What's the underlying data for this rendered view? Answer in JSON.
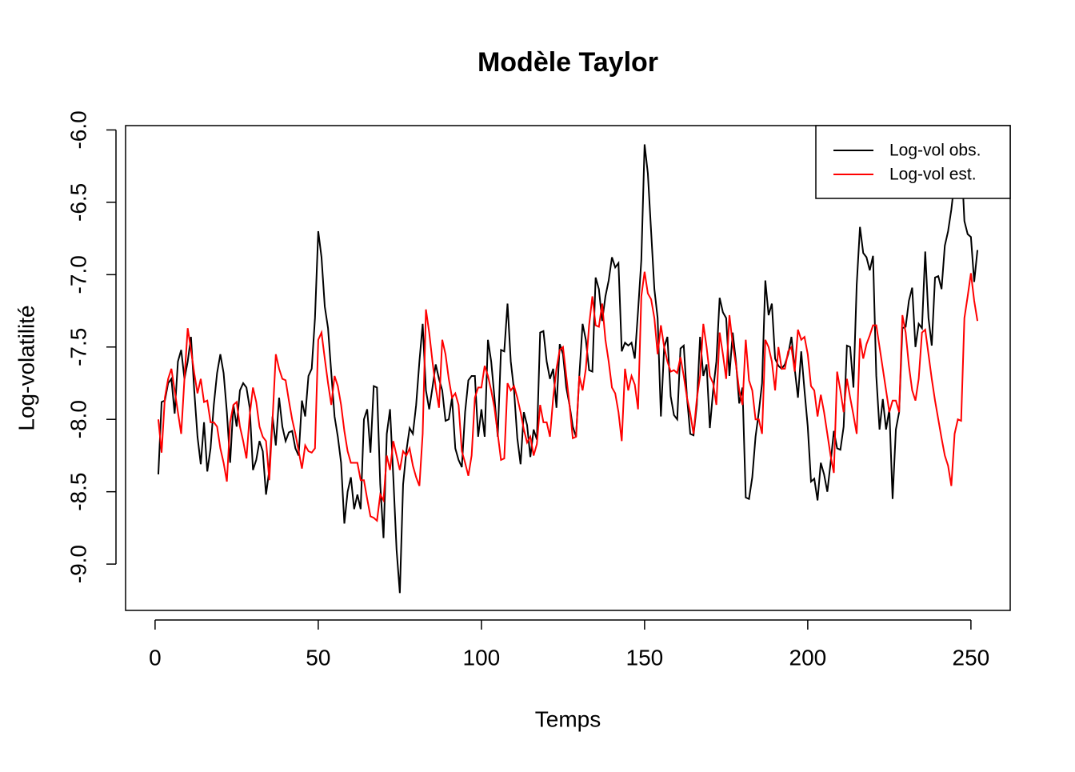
{
  "chart_data": {
    "type": "line",
    "title": "Modèle Taylor",
    "xlabel": "Temps",
    "ylabel": "Log-volatilité",
    "xlim": [
      -9.04,
      262.04
    ],
    "ylim": [
      -9.32,
      -5.97
    ],
    "xticks": [
      0,
      50,
      100,
      150,
      200,
      250
    ],
    "yticks": [
      {
        "value": -9,
        "label": "-9.0"
      },
      {
        "value": -8.5,
        "label": "-8.5"
      },
      {
        "value": -8,
        "label": "-8.0"
      },
      {
        "value": -7.5,
        "label": "-7.5"
      },
      {
        "value": -7,
        "label": "-7.0"
      },
      {
        "value": -6.5,
        "label": "-6.5"
      },
      {
        "value": -6,
        "label": "-6.0"
      }
    ],
    "legend": "topright",
    "grid": false,
    "x": [
      1,
      2,
      3,
      4,
      5,
      6,
      7,
      8,
      9,
      10,
      11,
      12,
      13,
      14,
      15,
      16,
      17,
      18,
      19,
      20,
      21,
      22,
      23,
      24,
      25,
      26,
      27,
      28,
      29,
      30,
      31,
      32,
      33,
      34,
      35,
      36,
      37,
      38,
      39,
      40,
      41,
      42,
      43,
      44,
      45,
      46,
      47,
      48,
      49,
      50,
      51,
      52,
      53,
      54,
      55,
      56,
      57,
      58,
      59,
      60,
      61,
      62,
      63,
      64,
      65,
      66,
      67,
      68,
      69,
      70,
      71,
      72,
      73,
      74,
      75,
      76,
      77,
      78,
      79,
      80,
      81,
      82,
      83,
      84,
      85,
      86,
      87,
      88,
      89,
      90,
      91,
      92,
      93,
      94,
      95,
      96,
      97,
      98,
      99,
      100,
      101,
      102,
      103,
      104,
      105,
      106,
      107,
      108,
      109,
      110,
      111,
      112,
      113,
      114,
      115,
      116,
      117,
      118,
      119,
      120,
      121,
      122,
      123,
      124,
      125,
      126,
      127,
      128,
      129,
      130,
      131,
      132,
      133,
      134,
      135,
      136,
      137,
      138,
      139,
      140,
      141,
      142,
      143,
      144,
      145,
      146,
      147,
      148,
      149,
      150,
      151,
      152,
      153,
      154,
      155,
      156,
      157,
      158,
      159,
      160,
      161,
      162,
      163,
      164,
      165,
      166,
      167,
      168,
      169,
      170,
      171,
      172,
      173,
      174,
      175,
      176,
      177,
      178,
      179,
      180,
      181,
      182,
      183,
      184,
      185,
      186,
      187,
      188,
      189,
      190,
      191,
      192,
      193,
      194,
      195,
      196,
      197,
      198,
      199,
      200,
      201,
      202,
      203,
      204,
      205,
      206,
      207,
      208,
      209,
      210,
      211,
      212,
      213,
      214,
      215,
      216,
      217,
      218,
      219,
      220,
      221,
      222,
      223,
      224,
      225,
      226,
      227,
      228,
      229,
      230,
      231,
      232,
      233,
      234,
      235,
      236,
      237,
      238,
      239,
      240,
      241,
      242,
      243,
      244,
      245,
      246,
      247,
      248,
      249,
      250,
      251,
      252
    ],
    "series": [
      {
        "name": "Log-vol obs.",
        "color": "#000000",
        "values": [
          -8.38,
          -7.88,
          -7.87,
          -7.75,
          -7.72,
          -7.96,
          -7.6,
          -7.52,
          -7.72,
          -7.6,
          -7.43,
          -7.8,
          -8.12,
          -8.31,
          -8.02,
          -8.36,
          -8.2,
          -7.9,
          -7.68,
          -7.55,
          -7.68,
          -7.95,
          -8.3,
          -7.9,
          -8.05,
          -7.8,
          -7.75,
          -7.78,
          -7.92,
          -8.35,
          -8.28,
          -8.15,
          -8.22,
          -8.52,
          -8.35,
          -7.98,
          -8.18,
          -7.85,
          -8.05,
          -8.15,
          -8.09,
          -8.08,
          -8.2,
          -8.25,
          -7.87,
          -7.98,
          -7.7,
          -7.65,
          -7.3,
          -6.7,
          -6.88,
          -7.22,
          -7.37,
          -7.68,
          -7.98,
          -8.12,
          -8.3,
          -8.72,
          -8.5,
          -8.4,
          -8.62,
          -8.52,
          -8.62,
          -8.0,
          -7.93,
          -8.23,
          -7.77,
          -7.78,
          -8.45,
          -8.82,
          -8.1,
          -7.93,
          -8.4,
          -8.9,
          -9.2,
          -8.45,
          -8.22,
          -8.06,
          -8.1,
          -7.9,
          -7.6,
          -7.34,
          -7.8,
          -7.93,
          -7.78,
          -7.62,
          -7.72,
          -7.8,
          -8.01,
          -8.0,
          -7.85,
          -8.2,
          -8.28,
          -8.33,
          -7.95,
          -7.73,
          -7.7,
          -7.7,
          -8.12,
          -7.93,
          -8.12,
          -7.45,
          -7.6,
          -7.85,
          -8.12,
          -7.52,
          -7.53,
          -7.2,
          -7.6,
          -7.8,
          -8.13,
          -8.31,
          -7.95,
          -8.04,
          -8.26,
          -8.07,
          -8.14,
          -7.4,
          -7.39,
          -7.6,
          -7.72,
          -7.65,
          -7.92,
          -7.48,
          -7.55,
          -7.78,
          -7.9,
          -8.05,
          -8.12,
          -7.7,
          -7.34,
          -7.45,
          -7.66,
          -7.67,
          -7.02,
          -7.1,
          -7.32,
          -7.15,
          -7.04,
          -6.88,
          -6.95,
          -6.92,
          -7.53,
          -7.47,
          -7.49,
          -7.47,
          -7.58,
          -7.25,
          -6.9,
          -6.1,
          -6.3,
          -6.7,
          -7.1,
          -7.3,
          -7.98,
          -7.5,
          -7.43,
          -7.84,
          -7.97,
          -8.0,
          -7.51,
          -7.49,
          -7.85,
          -8.1,
          -8.11,
          -7.9,
          -7.43,
          -7.7,
          -7.62,
          -8.06,
          -7.8,
          -7.6,
          -7.16,
          -7.26,
          -7.3,
          -7.7,
          -7.4,
          -7.6,
          -7.89,
          -7.78,
          -8.54,
          -8.55,
          -8.4,
          -8.12,
          -7.95,
          -7.75,
          -7.04,
          -7.28,
          -7.2,
          -7.58,
          -7.63,
          -7.65,
          -7.62,
          -7.55,
          -7.43,
          -7.65,
          -7.85,
          -7.53,
          -7.8,
          -8.05,
          -8.43,
          -8.41,
          -8.56,
          -8.3,
          -8.38,
          -8.5,
          -8.3,
          -8.08,
          -8.2,
          -8.21,
          -8.05,
          -7.49,
          -7.5,
          -7.78,
          -7.07,
          -6.67,
          -6.85,
          -6.88,
          -6.97,
          -6.87,
          -7.7,
          -8.07,
          -7.86,
          -8.07,
          -7.93,
          -8.55,
          -8.07,
          -7.95,
          -7.37,
          -7.36,
          -7.18,
          -7.09,
          -7.5,
          -7.34,
          -7.37,
          -6.84,
          -7.3,
          -7.49,
          -7.02,
          -7.01,
          -7.1,
          -6.8,
          -6.7,
          -6.55,
          -6.35,
          -6.2,
          -6.15,
          -6.63,
          -6.72,
          -6.74,
          -7.05,
          -6.83
        ]
      },
      {
        "name": "Log-vol est.",
        "color": "#ff0000",
        "values": [
          -8.0,
          -8.23,
          -7.85,
          -7.72,
          -7.65,
          -7.8,
          -7.95,
          -8.1,
          -7.72,
          -7.37,
          -7.52,
          -7.68,
          -7.82,
          -7.72,
          -7.88,
          -7.87,
          -8.02,
          -8.02,
          -8.05,
          -8.2,
          -8.3,
          -8.43,
          -8.02,
          -7.9,
          -7.88,
          -8.05,
          -8.15,
          -8.27,
          -7.97,
          -7.78,
          -7.88,
          -8.05,
          -8.12,
          -8.15,
          -8.42,
          -8.0,
          -7.55,
          -7.65,
          -7.72,
          -7.73,
          -7.87,
          -8.0,
          -8.1,
          -8.22,
          -8.34,
          -8.18,
          -8.22,
          -8.23,
          -8.2,
          -7.45,
          -7.4,
          -7.58,
          -7.75,
          -7.9,
          -7.7,
          -7.77,
          -7.9,
          -8.08,
          -8.22,
          -8.3,
          -8.3,
          -8.3,
          -8.42,
          -8.42,
          -8.55,
          -8.67,
          -8.68,
          -8.7,
          -8.52,
          -8.56,
          -8.25,
          -8.35,
          -8.15,
          -8.25,
          -8.35,
          -8.22,
          -8.25,
          -8.2,
          -8.32,
          -8.4,
          -8.46,
          -8.1,
          -7.24,
          -7.4,
          -7.6,
          -7.78,
          -7.92,
          -7.45,
          -7.55,
          -7.72,
          -7.85,
          -7.82,
          -7.9,
          -8.22,
          -8.3,
          -8.39,
          -8.25,
          -7.85,
          -7.78,
          -7.78,
          -7.63,
          -7.7,
          -7.8,
          -7.92,
          -8.1,
          -8.28,
          -8.27,
          -7.75,
          -7.8,
          -7.77,
          -7.85,
          -7.95,
          -8.07,
          -8.16,
          -8.12,
          -8.25,
          -8.17,
          -7.9,
          -8.02,
          -8.02,
          -8.12,
          -7.85,
          -7.65,
          -7.52,
          -7.5,
          -7.7,
          -7.9,
          -8.13,
          -8.12,
          -7.7,
          -7.8,
          -7.65,
          -7.35,
          -7.15,
          -7.35,
          -7.36,
          -7.2,
          -7.45,
          -7.6,
          -7.78,
          -7.82,
          -7.95,
          -8.15,
          -7.65,
          -7.8,
          -7.7,
          -7.76,
          -7.93,
          -7.15,
          -6.98,
          -7.13,
          -7.17,
          -7.3,
          -7.55,
          -7.35,
          -7.5,
          -7.6,
          -7.67,
          -7.66,
          -7.68,
          -7.57,
          -7.7,
          -7.85,
          -7.96,
          -8.1,
          -7.86,
          -7.7,
          -7.34,
          -7.5,
          -7.7,
          -7.75,
          -7.9,
          -7.4,
          -7.55,
          -7.72,
          -7.28,
          -7.48,
          -7.62,
          -7.8,
          -7.9,
          -7.45,
          -7.73,
          -7.8,
          -8.0,
          -8.0,
          -8.1,
          -7.45,
          -7.5,
          -7.6,
          -7.8,
          -7.5,
          -7.65,
          -7.65,
          -7.53,
          -7.5,
          -7.67,
          -7.38,
          -7.45,
          -7.43,
          -7.55,
          -7.77,
          -7.8,
          -7.98,
          -7.83,
          -7.95,
          -8.1,
          -8.25,
          -8.37,
          -7.67,
          -7.8,
          -7.95,
          -7.72,
          -7.85,
          -7.97,
          -8.1,
          -7.44,
          -7.58,
          -7.48,
          -7.42,
          -7.35,
          -7.35,
          -7.5,
          -7.65,
          -7.8,
          -7.95,
          -7.87,
          -7.87,
          -7.95,
          -7.28,
          -7.4,
          -7.63,
          -7.8,
          -7.87,
          -7.72,
          -7.4,
          -7.38,
          -7.55,
          -7.72,
          -7.87,
          -8.0,
          -8.13,
          -8.25,
          -8.32,
          -8.46,
          -8.1,
          -8.0,
          -8.01,
          -7.3,
          -7.15,
          -6.99,
          -7.18,
          -7.32
        ]
      }
    ]
  }
}
